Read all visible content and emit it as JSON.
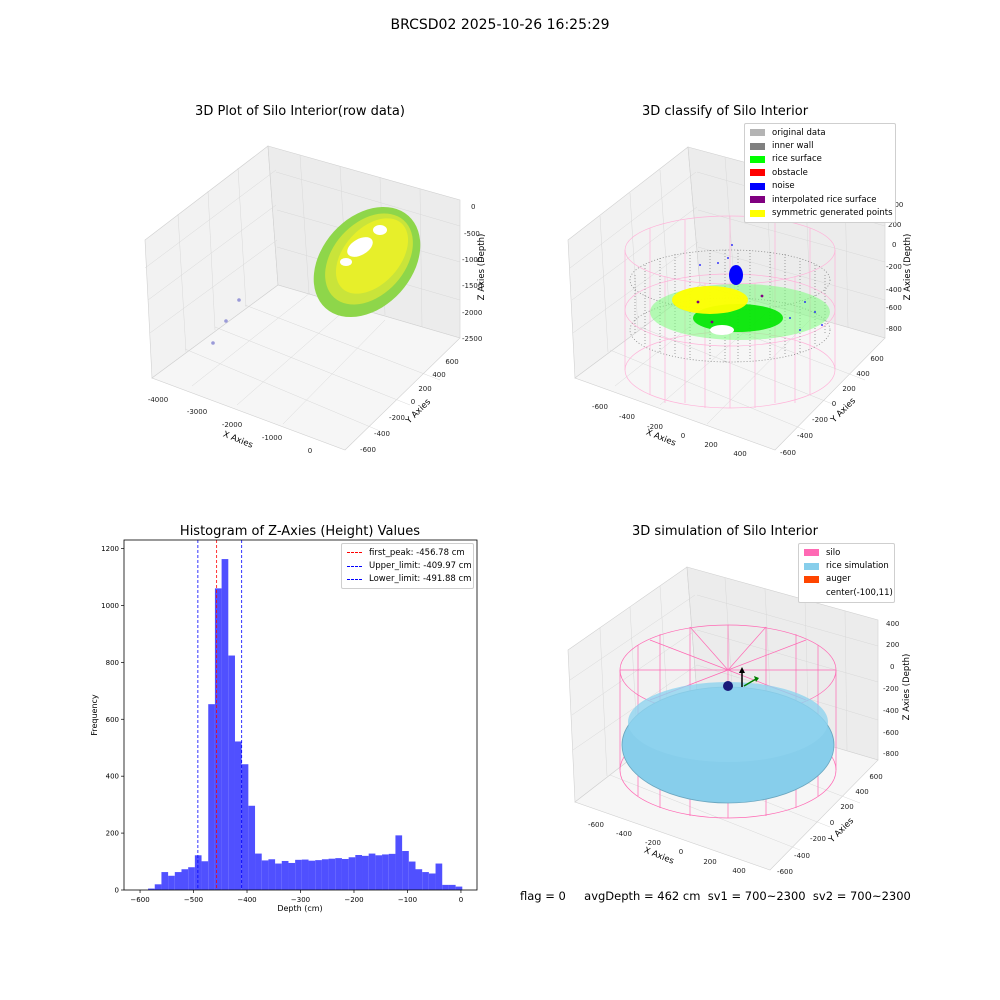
{
  "figure": {
    "suptitle": "BRCSD02 2025-10-26 16:25:29"
  },
  "panels": {
    "raw": {
      "title": "3D Plot of Silo Interior(row data)",
      "xlabel": "X Axies",
      "ylabel": "Y Axies",
      "zlabel": "Z Axies (Depth)",
      "xticks": [
        "-4000",
        "-3000",
        "-2000",
        "-1000",
        "0"
      ],
      "yticks": [
        "-600",
        "-400",
        "-200",
        "0",
        "200",
        "400",
        "600"
      ],
      "zticks": [
        "0",
        "-500",
        "-1000",
        "-1500",
        "-2000",
        "-2500"
      ]
    },
    "classify": {
      "title": "3D classify of Silo Interior",
      "xlabel": "X Axies",
      "ylabel": "Y Axies",
      "zlabel": "Z Axies (Depth)",
      "xticks": [
        "-600",
        "-400",
        "-200",
        "0",
        "200",
        "400"
      ],
      "yticks": [
        "-600",
        "-400",
        "-200",
        "0",
        "200",
        "400",
        "600"
      ],
      "zticks": [
        "400",
        "200",
        "0",
        "-200",
        "-400",
        "-600",
        "-800"
      ],
      "legend": [
        {
          "label": "original data",
          "color": "#b4b4b4"
        },
        {
          "label": "inner wall",
          "color": "#808080"
        },
        {
          "label": "rice surface",
          "color": "#00ff00"
        },
        {
          "label": "obstacle",
          "color": "#ff0000"
        },
        {
          "label": "noise",
          "color": "#0000ff"
        },
        {
          "label": "interpolated rice surface",
          "color": "#800080"
        },
        {
          "label": "symmetric generated points",
          "color": "#ffff00"
        }
      ]
    },
    "simulation": {
      "title": "3D simulation of Silo Interior",
      "xlabel": "X Axies",
      "ylabel": "Y Axies",
      "zlabel": "Z Axies (Depth)",
      "xticks": [
        "-600",
        "-400",
        "-200",
        "0",
        "200",
        "400"
      ],
      "yticks": [
        "-600",
        "-400",
        "-200",
        "0",
        "200",
        "400",
        "600"
      ],
      "zticks": [
        "400",
        "200",
        "0",
        "-200",
        "-400",
        "-600",
        "-800"
      ],
      "legend": [
        {
          "label": "silo",
          "color": "#ff69b4"
        },
        {
          "label": "rice simulation",
          "color": "#87ceeb"
        },
        {
          "label": "auger",
          "color": "#ff4500"
        },
        {
          "label": "center(-100,11)",
          "color": ""
        }
      ]
    }
  },
  "chart_data": [
    {
      "type": "bar",
      "title": "Histogram of Z-Axies (Height) Values",
      "xlabel": "Depth (cm)",
      "ylabel": "Frequency",
      "xlim": [
        -630,
        30
      ],
      "ylim": [
        0,
        1230
      ],
      "xticks": [
        -600,
        -500,
        -400,
        -300,
        -200,
        -100,
        0
      ],
      "yticks": [
        0,
        200,
        400,
        600,
        800,
        1000,
        1200
      ],
      "bar_color": "#5050ff",
      "bin_edges": [
        -585,
        -572.5,
        -560,
        -547.5,
        -535,
        -522.5,
        -510,
        -497.5,
        -485,
        -472.5,
        -460,
        -447.5,
        -435,
        -422.5,
        -410,
        -397.5,
        -385,
        -372.5,
        -360,
        -347.5,
        -335,
        -322.5,
        -310,
        -297.5,
        -285,
        -272.5,
        -260,
        -247.5,
        -235,
        -222.5,
        -210,
        -197.5,
        -185,
        -172.5,
        -160,
        -147.5,
        -135,
        -122.5,
        -110,
        -97.5,
        -85,
        -72.5,
        -60,
        -47.5,
        -35,
        -22.5,
        -10,
        2.5
      ],
      "values": [
        5,
        20,
        63,
        50,
        63,
        73,
        80,
        122,
        101,
        653,
        1060,
        1163,
        824,
        522,
        442,
        296,
        128,
        104,
        108,
        93,
        102,
        95,
        106,
        107,
        103,
        105,
        108,
        110,
        112,
        109,
        115,
        123,
        120,
        128,
        122,
        125,
        127,
        192,
        137,
        100,
        73,
        63,
        58,
        93,
        18,
        18,
        12
      ],
      "vlines": [
        {
          "x": -456.78,
          "color": "#ff0000",
          "label": "first_peak: -456.78 cm"
        },
        {
          "x": -409.97,
          "color": "#0000ff",
          "label": "Upper_limit: -409.97 cm"
        },
        {
          "x": -491.88,
          "color": "#0000ff",
          "label": "Lower_limit: -491.88 cm"
        }
      ],
      "legend_loc": "upper right"
    }
  ],
  "footer": {
    "flag": "flag = 0",
    "stats": "avgDepth = 462 cm  sv1 = 700~2300  sv2 = 700~2300"
  }
}
